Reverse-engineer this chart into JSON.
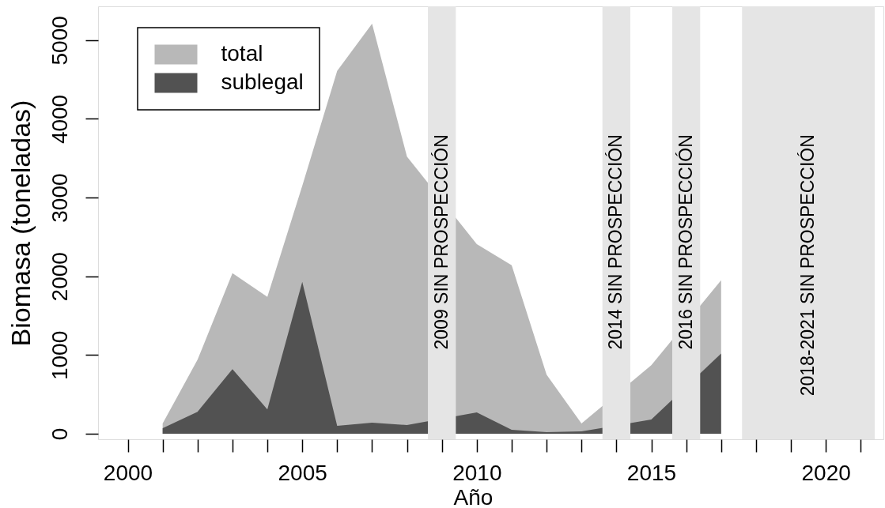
{
  "chart_data": {
    "type": "area",
    "xlabel": "Año",
    "ylabel": "Biomasa (toneladas)",
    "x": [
      2001,
      2002,
      2003,
      2004,
      2005,
      2006,
      2007,
      2008,
      2010,
      2011,
      2012,
      2013,
      2015,
      2017
    ],
    "series": [
      {
        "name": "total",
        "color": "#b8b8b8",
        "values": [
          130,
          940,
          2040,
          1740,
          3150,
          4610,
          5210,
          3520,
          2410,
          2140,
          750,
          130,
          870,
          1950
        ]
      },
      {
        "name": "sublegal",
        "color": "#525252",
        "values": [
          70,
          280,
          820,
          310,
          1930,
          100,
          140,
          110,
          270,
          50,
          20,
          30,
          180,
          1020
        ]
      }
    ],
    "xlim": [
      1999.15,
      2021.65
    ],
    "ylim": [
      -70,
      5430
    ],
    "xticks": [
      2000,
      {
        "value": 2001,
        "label": null
      },
      {
        "value": 2002,
        "label": null
      },
      {
        "value": 2003,
        "label": null
      },
      {
        "value": 2004,
        "label": null
      },
      2005,
      {
        "value": 2006,
        "label": null
      },
      {
        "value": 2007,
        "label": null
      },
      {
        "value": 2008,
        "label": null
      },
      {
        "value": 2009,
        "label": null
      },
      2010,
      {
        "value": 2011,
        "label": null
      },
      {
        "value": 2012,
        "label": null
      },
      {
        "value": 2013,
        "label": null
      },
      {
        "value": 2014,
        "label": null
      },
      2015,
      {
        "value": 2016,
        "label": null
      },
      {
        "value": 2017,
        "label": null
      },
      {
        "value": 2018,
        "label": null
      },
      {
        "value": 2019,
        "label": null
      },
      2020,
      {
        "value": 2021,
        "label": null
      }
    ],
    "yticks": [
      0,
      1000,
      2000,
      3000,
      4000,
      5000
    ],
    "bands": [
      {
        "axis": "x",
        "from": 2008.6,
        "to": 2009.4,
        "label": "2009 SIN PROSPECCIÓN",
        "color": "#e5e5e5"
      },
      {
        "axis": "x",
        "from": 2013.6,
        "to": 2014.4,
        "label": "2014 SIN PROSPECCIÓN",
        "color": "#e5e5e5"
      },
      {
        "axis": "x",
        "from": 2015.6,
        "to": 2016.4,
        "label": "2016 SIN PROSPECCIÓN",
        "color": "#e5e5e5"
      },
      {
        "axis": "x",
        "from": 2017.6,
        "to": 2021.4,
        "label": "2018-2021 SIN PROSPECCIÓN",
        "color": "#e5e5e5"
      }
    ],
    "legend": "top left",
    "grid": false
  }
}
